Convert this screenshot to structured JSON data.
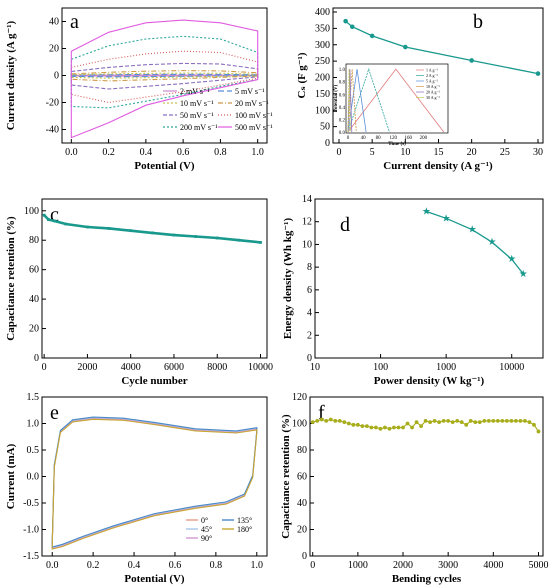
{
  "colors": {
    "teal": "#19998e",
    "olive": "#a8ad1c",
    "cv": [
      "#cc88cc",
      "#5a8fd8",
      "#c4c850",
      "#d09a4a",
      "#8a6fc0",
      "#d85a5a",
      "#2aa79b",
      "#e05ce0"
    ],
    "bend": [
      "#e39b86",
      "#a7c7e7",
      "#d59ad4",
      "#4a89c8",
      "#c7a732"
    ]
  },
  "chart_data": [
    {
      "panel": "a",
      "type": "line",
      "xlabel": "Potential (V)",
      "ylabel": "Current density (A g⁻¹)",
      "xlim": [
        -0.05,
        1.05
      ],
      "ylim": [
        -50,
        50
      ],
      "xticks": [
        "0.0",
        "0.2",
        "0.4",
        "0.6",
        "0.8",
        "1.0"
      ],
      "yticks": [
        "-40",
        "-20",
        "0",
        "20",
        "40"
      ],
      "legend": "bottom",
      "series": [
        {
          "name": "2 mV s⁻¹",
          "scan_rate": 2,
          "top": [
            0.1,
            0.25,
            0.35,
            0.4,
            0.38,
            0.2
          ],
          "bottom": [
            -0.3,
            -0.45,
            -0.35,
            -0.25,
            -0.15,
            -0.05
          ]
        },
        {
          "name": "5 mV s⁻¹",
          "scan_rate": 5,
          "top": [
            0.3,
            0.6,
            0.8,
            0.9,
            0.85,
            0.5
          ],
          "bottom": [
            -0.7,
            -1.0,
            -0.8,
            -0.6,
            -0.35,
            -0.1
          ]
        },
        {
          "name": "10 mV s⁻¹",
          "scan_rate": 10,
          "top": [
            0.6,
            1.2,
            1.6,
            1.8,
            1.7,
            1.0
          ],
          "bottom": [
            -1.4,
            -2.0,
            -1.6,
            -1.2,
            -0.7,
            -0.2
          ]
        },
        {
          "name": "20 mV s⁻¹",
          "scan_rate": 20,
          "top": [
            1.2,
            2.4,
            3.2,
            3.6,
            3.4,
            2.0
          ],
          "bottom": [
            -2.8,
            -4.0,
            -3.2,
            -2.4,
            -1.4,
            -0.4
          ]
        },
        {
          "name": "50 mV s⁻¹",
          "scan_rate": 50,
          "top": [
            3,
            6,
            8,
            9,
            8.5,
            5
          ],
          "bottom": [
            -7,
            -10,
            -8,
            -6,
            -3.5,
            -1
          ]
        },
        {
          "name": "100 mV s⁻¹",
          "scan_rate": 100,
          "top": [
            6,
            12,
            16,
            18,
            17,
            10
          ],
          "bottom": [
            -14,
            -20,
            -16,
            -12,
            -7,
            -2
          ]
        },
        {
          "name": "200 mV s⁻¹",
          "scan_rate": 200,
          "top": [
            12,
            22,
            27,
            29,
            27,
            17
          ],
          "bottom": [
            -23,
            -24,
            -19,
            -14,
            -8,
            -3
          ]
        },
        {
          "name": "500 mV s⁻¹",
          "scan_rate": 500,
          "top": [
            18,
            32,
            39,
            41,
            39,
            33
          ],
          "bottom": [
            -46,
            -35,
            -22,
            -15,
            -9,
            -3
          ]
        }
      ]
    },
    {
      "panel": "b",
      "type": "line",
      "xlabel": "Current density (A g⁻¹)",
      "ylabel": "Cₛ (F g⁻¹)",
      "xlim": [
        0,
        30
      ],
      "ylim": [
        0,
        400
      ],
      "xticks": [
        "0",
        "5",
        "10",
        "15",
        "20",
        "25",
        "30"
      ],
      "yticks": [
        "0",
        "50",
        "100",
        "150",
        "200",
        "250",
        "300",
        "350",
        "400"
      ],
      "x": [
        1,
        2,
        5,
        10,
        20,
        30
      ],
      "y": [
        372,
        355,
        327,
        293,
        252,
        212
      ],
      "inset": {
        "xlabel": "Time (s)",
        "ylabel": "Potential (V)",
        "xticks": [
          "0",
          "40",
          "80",
          "120",
          "160",
          "200"
        ],
        "yticks": [
          "0.0",
          "0.2",
          "0.4",
          "0.6",
          "0.8",
          "1.0"
        ],
        "legend": [
          "1 A g⁻¹",
          "2 A g⁻¹",
          "5 A g⁻¹",
          "10 A g⁻¹",
          "20 A g⁻¹",
          "30 A g⁻¹"
        ],
        "curves": [
          {
            "peak_time": 127,
            "end_time": 254
          },
          {
            "peak_time": 55,
            "end_time": 110
          },
          {
            "peak_time": 24,
            "end_time": 48
          },
          {
            "peak_time": 11,
            "end_time": 22
          },
          {
            "peak_time": 5,
            "end_time": 10
          },
          {
            "peak_time": 3,
            "end_time": 6
          }
        ]
      }
    },
    {
      "panel": "c",
      "type": "line",
      "xlabel": "Cycle number",
      "ylabel": "Capacitance retention (%)",
      "xlim": [
        0,
        10300
      ],
      "ylim": [
        0,
        108
      ],
      "xticks": [
        "0",
        "2000",
        "4000",
        "6000",
        "8000",
        "10000"
      ],
      "yticks": [
        "0",
        "20",
        "40",
        "60",
        "80",
        "100"
      ],
      "x": [
        0,
        200,
        500,
        1000,
        2000,
        3000,
        4000,
        5000,
        6000,
        7000,
        8000,
        9000,
        10000
      ],
      "y": [
        97,
        94,
        93,
        91,
        89,
        88,
        86.5,
        85,
        83.5,
        82.5,
        81.5,
        80,
        78.5
      ]
    },
    {
      "panel": "d",
      "type": "line",
      "xscale": "log",
      "xlabel": "Power density (W kg⁻¹)",
      "ylabel": "Energy density (Wh kg⁻¹)",
      "xlim": [
        10,
        30000
      ],
      "ylim": [
        0,
        14
      ],
      "xticks": [
        "10",
        "100",
        "1000",
        "10000"
      ],
      "yticks": [
        "0",
        "2",
        "4",
        "6",
        "8",
        "10",
        "12",
        "14"
      ],
      "x": [
        500,
        1000,
        2500,
        5000,
        10000,
        15000
      ],
      "y": [
        12.9,
        12.3,
        11.3,
        10.2,
        8.7,
        7.4
      ]
    },
    {
      "panel": "e",
      "type": "line",
      "xlabel": "Potential (V)",
      "ylabel": "Current (mA)",
      "xlim": [
        -0.05,
        1.05
      ],
      "ylim": [
        -1.5,
        1.5
      ],
      "xticks": [
        "0.0",
        "0.2",
        "0.4",
        "0.6",
        "0.8",
        "1.0"
      ],
      "yticks": [
        "-1.5",
        "-1.0",
        "-0.5",
        "0.0",
        "0.5",
        "1.0",
        "1.5"
      ],
      "legend": "bottom-right",
      "series": [
        {
          "name": "0°",
          "offset": 0
        },
        {
          "name": "45°",
          "offset": 0.01
        },
        {
          "name": "90°",
          "offset": -0.01
        },
        {
          "name": "135°",
          "offset": 0.02
        },
        {
          "name": "180°",
          "offset": -0.02
        }
      ]
    },
    {
      "panel": "f",
      "type": "line",
      "xlabel": "Bending cycles",
      "ylabel": "Capacitance retention (%)",
      "xlim": [
        0,
        5100
      ],
      "ylim": [
        0,
        120
      ],
      "xticks": [
        "0",
        "1000",
        "2000",
        "3000",
        "4000",
        "5000"
      ],
      "yticks": [
        "0",
        "20",
        "40",
        "60",
        "80",
        "100",
        "120"
      ],
      "x": [
        0,
        100,
        200,
        300,
        400,
        500,
        600,
        700,
        800,
        900,
        1000,
        1100,
        1200,
        1300,
        1400,
        1500,
        1600,
        1700,
        1800,
        1900,
        2000,
        2100,
        2200,
        2300,
        2400,
        2500,
        2600,
        2700,
        2800,
        2900,
        3000,
        3100,
        3200,
        3300,
        3400,
        3500,
        3600,
        3700,
        3800,
        3900,
        4000,
        4100,
        4200,
        4300,
        4400,
        4500,
        4600,
        4700,
        4800,
        4900,
        5000
      ],
      "y": [
        101,
        102,
        103,
        102,
        103,
        102,
        102,
        101,
        100,
        99,
        99,
        98,
        98,
        97,
        97,
        96,
        97,
        96,
        97,
        97,
        97,
        100,
        97,
        101,
        98,
        102,
        101,
        102,
        101,
        102,
        102,
        101,
        102,
        101,
        99,
        102,
        101,
        101,
        102,
        102,
        102,
        102,
        102,
        102,
        102,
        102,
        102,
        102,
        101,
        99,
        94
      ]
    }
  ]
}
